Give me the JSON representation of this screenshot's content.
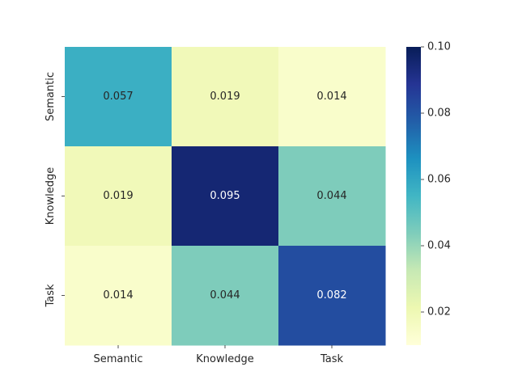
{
  "chart_data": {
    "type": "heatmap",
    "title": "",
    "xlabel": "",
    "ylabel": "",
    "x_categories": [
      "Semantic",
      "Knowledge",
      "Task"
    ],
    "y_categories": [
      "Semantic",
      "Knowledge",
      "Task"
    ],
    "values": [
      [
        0.057,
        0.019,
        0.014
      ],
      [
        0.019,
        0.095,
        0.044
      ],
      [
        0.014,
        0.044,
        0.082
      ]
    ],
    "value_labels": [
      [
        "0.057",
        "0.019",
        "0.014"
      ],
      [
        "0.019",
        "0.095",
        "0.044"
      ],
      [
        "0.014",
        "0.044",
        "0.082"
      ]
    ],
    "colorbar": {
      "vmin": 0.01,
      "vmax": 0.1,
      "ticks": [
        0.02,
        0.04,
        0.06,
        0.08,
        0.1
      ],
      "tick_labels": [
        "0.02",
        "0.04",
        "0.06",
        "0.08",
        "0.10"
      ],
      "colormap": "YlGnBu"
    },
    "grid": false,
    "colors": {
      "text_dark": "#262626",
      "text_light": "#ffffff"
    }
  }
}
